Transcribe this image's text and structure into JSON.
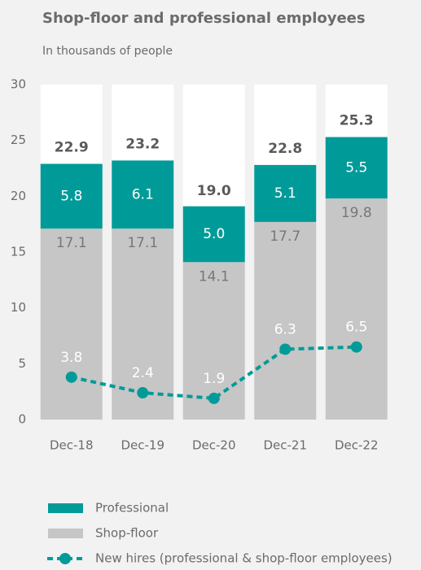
{
  "chart_data": {
    "type": "bar",
    "stacked": true,
    "title": "Shop-floor and professional employees",
    "subtitle": "In thousands of people",
    "categories": [
      "Dec-18",
      "Dec-19",
      "Dec-20",
      "Dec-21",
      "Dec-22"
    ],
    "series": [
      {
        "name": "Shop-floor",
        "color": "#c6c6c6",
        "values": [
          17.1,
          17.1,
          14.1,
          17.7,
          19.8
        ]
      },
      {
        "name": "Professional",
        "color": "#009b98",
        "values": [
          5.8,
          6.1,
          5,
          5.1,
          5.5
        ],
        "value_labels": [
          "5.8",
          "6.1",
          "5.0",
          "5.1",
          "5.5"
        ]
      },
      {
        "name": "New hires (professional & shop-floor employees)",
        "type": "line",
        "color": "#009b98",
        "values": [
          3.8,
          2.4,
          1.9,
          6.3,
          6.5
        ]
      }
    ],
    "totals": [
      22.9,
      23.2,
      19,
      22.8,
      25.3
    ],
    "total_labels": [
      "22.9",
      "23.2",
      "19.0",
      "22.8",
      "25.3"
    ],
    "ylim": [
      0,
      30
    ],
    "yticks": [
      0,
      5,
      10,
      15,
      20,
      25,
      30
    ]
  }
}
